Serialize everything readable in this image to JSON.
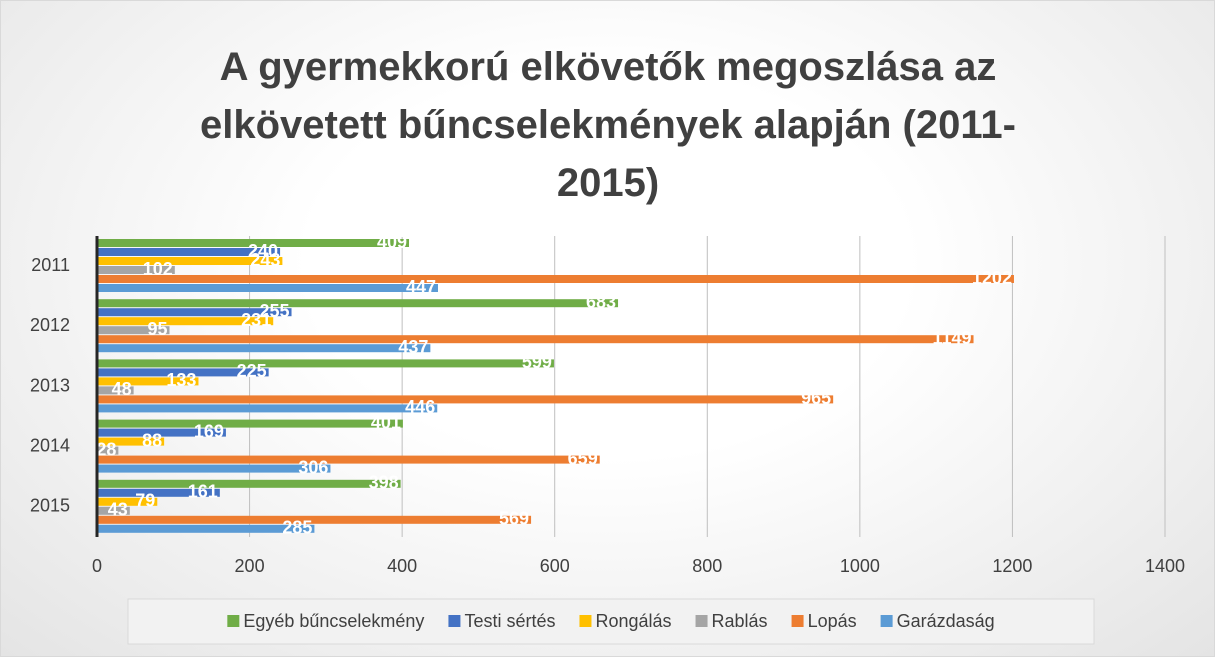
{
  "chart_data": {
    "type": "hbar",
    "title": "A gyermekkorú elkövetők megoszlása az elkövetett bűncselekmények alapján (2011-2015)",
    "categories": [
      "2011",
      "2012",
      "2013",
      "2014",
      "2015"
    ],
    "series": [
      {
        "name": "Egyéb bűncselekmény",
        "color": "#70ad47",
        "values": [
          409,
          683,
          599,
          401,
          398
        ]
      },
      {
        "name": "Testi sértés",
        "color": "#4472c4",
        "values": [
          240,
          255,
          225,
          169,
          161
        ]
      },
      {
        "name": "Rongálás",
        "color": "#ffc000",
        "values": [
          243,
          231,
          133,
          88,
          79
        ]
      },
      {
        "name": "Rablás",
        "color": "#a5a5a5",
        "values": [
          102,
          95,
          48,
          28,
          43
        ]
      },
      {
        "name": "Lopás",
        "color": "#ed7d31",
        "values": [
          1202,
          1149,
          965,
          659,
          569
        ]
      },
      {
        "name": "Garázdaság",
        "color": "#5b9bd5",
        "values": [
          447,
          437,
          446,
          306,
          285
        ]
      }
    ],
    "xlim": [
      0,
      1400
    ],
    "xticks": [
      0,
      200,
      400,
      600,
      800,
      1000,
      1200,
      1400
    ],
    "grid": true,
    "legend": "bottom"
  }
}
